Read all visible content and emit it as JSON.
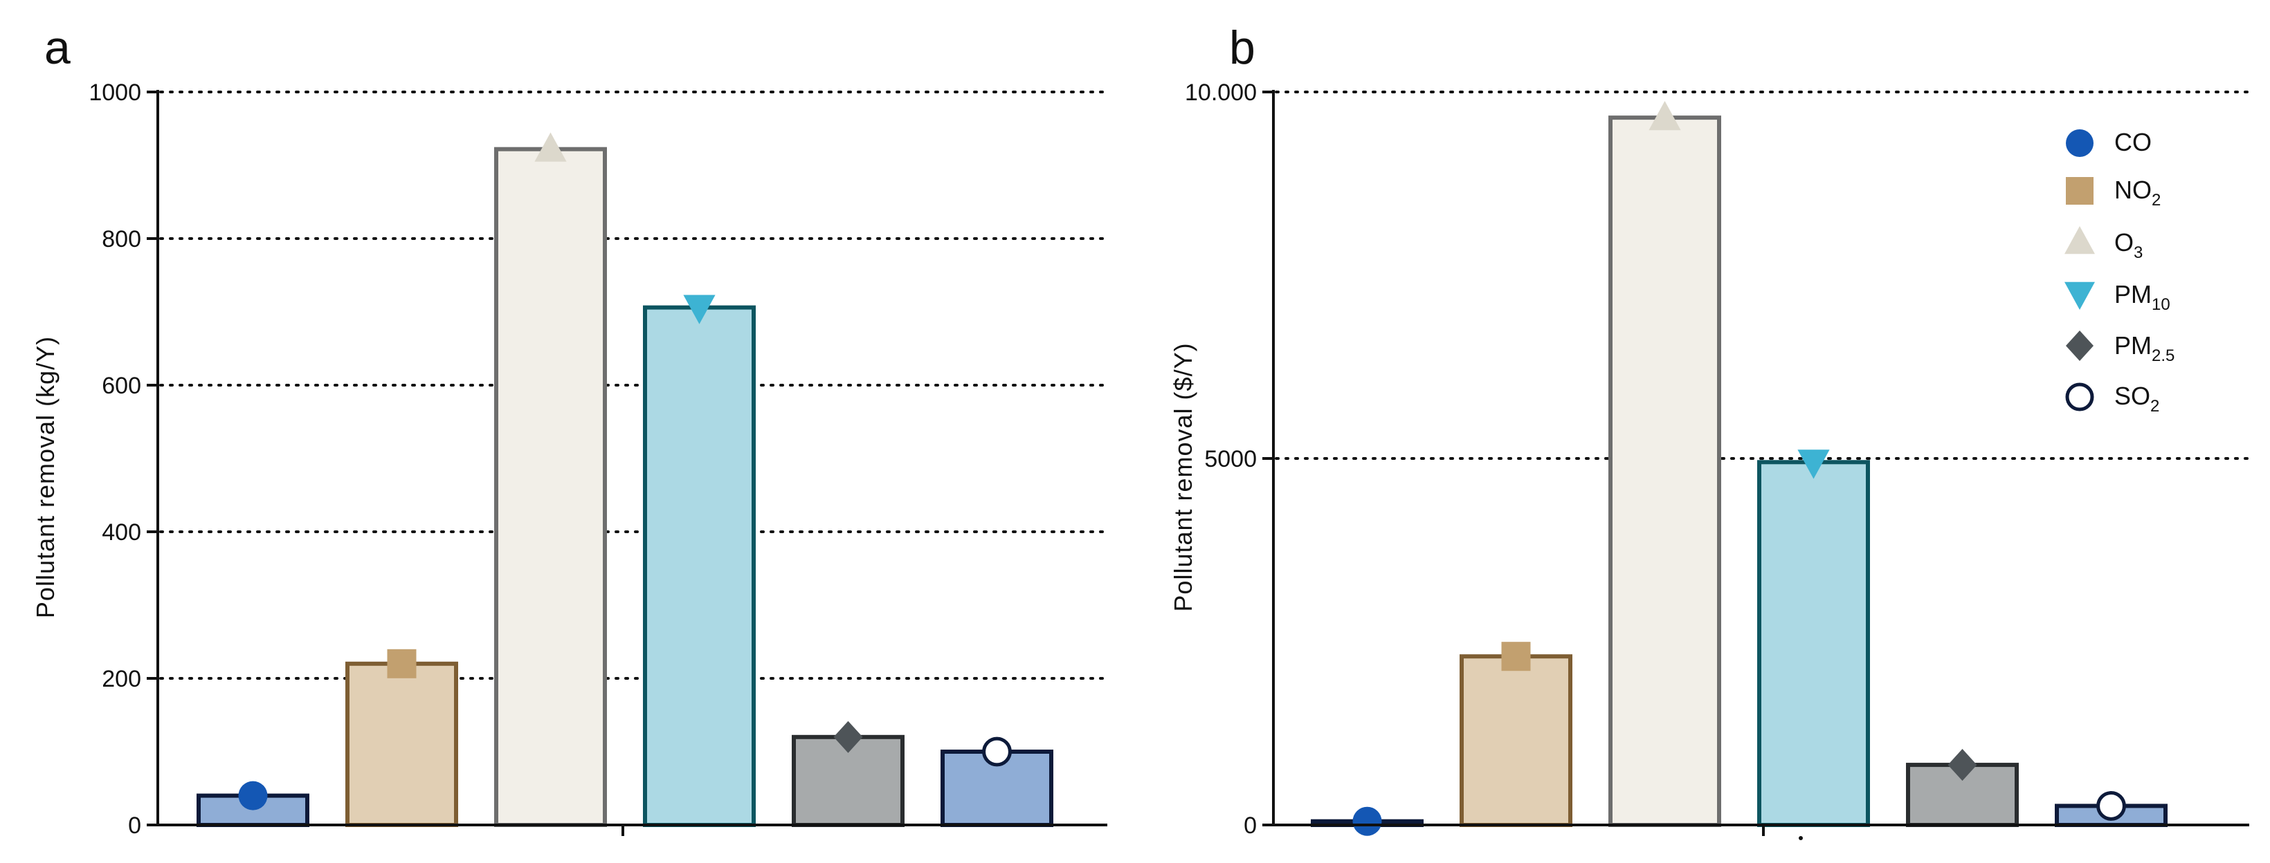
{
  "chart_data": [
    {
      "panel": "a",
      "type": "bar",
      "ylabel": "Pollutant removal (kg/Y)",
      "ylim": [
        0,
        1000
      ],
      "yticks": [
        0,
        200,
        400,
        600,
        800,
        1000
      ],
      "ytick_labels": [
        "0",
        "200",
        "400",
        "600",
        "800",
        "1000"
      ],
      "grid": "horizontal dotted",
      "categories": [
        "CO",
        "NO2",
        "O3",
        "PM10",
        "PM2.5",
        "SO2"
      ],
      "values": [
        40,
        220,
        922,
        706,
        120,
        100
      ]
    },
    {
      "panel": "b",
      "type": "bar",
      "ylabel": "Pollutant removal ($/Y)",
      "ylim": [
        0,
        10000
      ],
      "yticks": [
        0,
        5000,
        10000
      ],
      "ytick_labels": [
        "0",
        "5000",
        "10.000"
      ],
      "grid": "horizontal dotted",
      "categories": [
        "CO",
        "NO2",
        "O3",
        "PM10",
        "PM2.5",
        "SO2"
      ],
      "values": [
        50,
        2300,
        9650,
        4950,
        820,
        260
      ]
    }
  ],
  "legend": {
    "placement": "top-right of panel b",
    "items": [
      {
        "main": "CO",
        "sub": ""
      },
      {
        "main": "NO",
        "sub": "2"
      },
      {
        "main": "O",
        "sub": "3"
      },
      {
        "main": "PM",
        "sub": "10"
      },
      {
        "main": "PM",
        "sub": "2.5"
      },
      {
        "main": "SO",
        "sub": "2"
      }
    ]
  },
  "series_style": [
    {
      "name": "CO",
      "fill": "#8fadd6",
      "stroke": "#0d1a3a",
      "marker": "circle",
      "marker_color": "#1457b4"
    },
    {
      "name": "NO2",
      "fill": "#e1cfb4",
      "stroke": "#7e5e33",
      "marker": "square",
      "marker_color": "#c2a06f"
    },
    {
      "name": "O3",
      "fill": "#f2efe8",
      "stroke": "#6e6e6e",
      "marker": "triangle-up",
      "marker_color": "#dcd8cc"
    },
    {
      "name": "PM10",
      "fill": "#acd9e4",
      "stroke": "#0d5560",
      "marker": "triangle-down",
      "marker_color": "#3db3d3"
    },
    {
      "name": "PM2.5",
      "fill": "#a7aaab",
      "stroke": "#2a2d2f",
      "marker": "diamond",
      "marker_color": "#4e5458"
    },
    {
      "name": "SO2",
      "fill": "#8fadd6",
      "stroke": "#0d1a3a",
      "marker": "open-circle",
      "marker_color": "#0d1a3a"
    }
  ]
}
